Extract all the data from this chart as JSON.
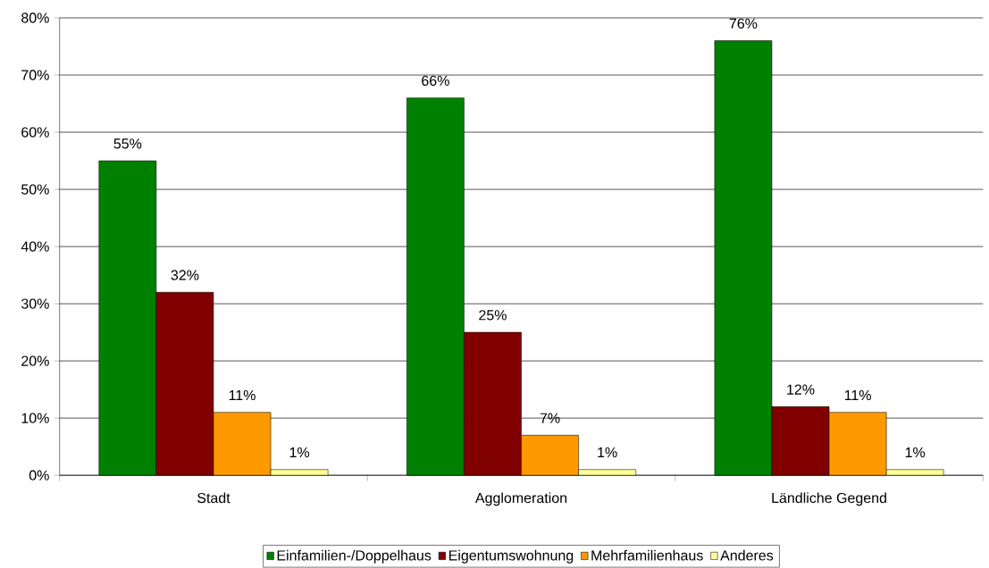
{
  "chart_data": {
    "type": "bar",
    "categories": [
      "Stadt",
      "Agglomeration",
      "Ländliche Gegend"
    ],
    "series": [
      {
        "name": "Einfamilien-/Doppelhaus",
        "color": "#008000",
        "values": [
          55,
          66,
          76
        ],
        "value_labels": [
          "55%",
          "66%",
          "76%"
        ]
      },
      {
        "name": "Eigentumswohnung",
        "color": "#800000",
        "values": [
          32,
          25,
          12
        ],
        "value_labels": [
          "32%",
          "25%",
          "12%"
        ]
      },
      {
        "name": "Mehrfamilienhaus",
        "color": "#ff9900",
        "values": [
          11,
          7,
          11
        ],
        "value_labels": [
          "11%",
          "7%",
          "11%"
        ]
      },
      {
        "name": "Anderes",
        "color": "#ffff99",
        "values": [
          1,
          1,
          1
        ],
        "value_labels": [
          "1%",
          "1%",
          "1%"
        ]
      }
    ],
    "ylim": [
      0,
      80
    ],
    "yticks": [
      {
        "value": 0,
        "label": "0%"
      },
      {
        "value": 10,
        "label": "10%"
      },
      {
        "value": 20,
        "label": "20%"
      },
      {
        "value": 30,
        "label": "30%"
      },
      {
        "value": 40,
        "label": "40%"
      },
      {
        "value": 50,
        "label": "50%"
      },
      {
        "value": 60,
        "label": "60%"
      },
      {
        "value": 70,
        "label": "70%"
      },
      {
        "value": 80,
        "label": "80%"
      }
    ],
    "grid": "y",
    "legend": "bottom"
  }
}
